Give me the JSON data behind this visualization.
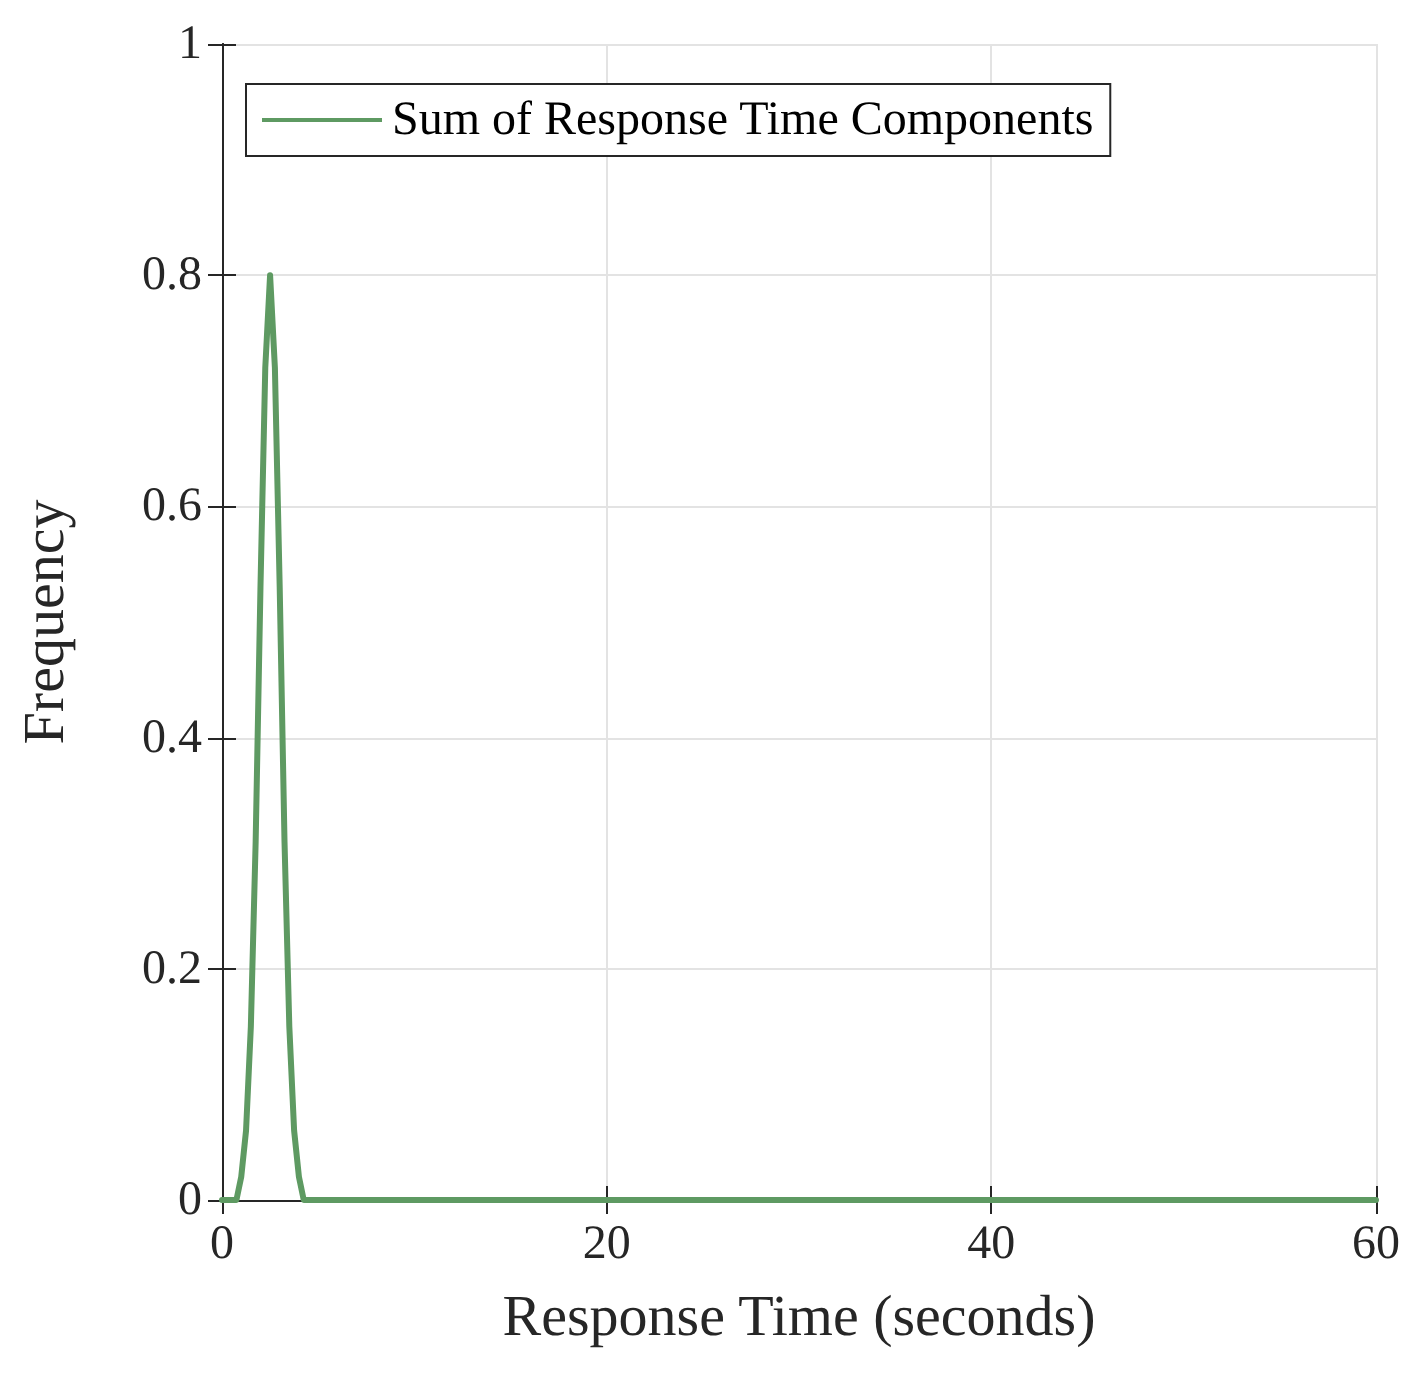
{
  "chart_data": {
    "type": "line",
    "xlabel": "Response Time (seconds)",
    "ylabel": "Frequency",
    "x": [
      0,
      0.5,
      0.75,
      1,
      1.25,
      1.5,
      1.75,
      2,
      2.25,
      2.5,
      2.75,
      3,
      3.25,
      3.5,
      3.75,
      4,
      4.25,
      4.5,
      5,
      60
    ],
    "series": [
      {
        "name": "Sum of Response Time Components",
        "color": "#5e9a62",
        "values": [
          0,
          0,
          0,
          0.02,
          0.06,
          0.15,
          0.31,
          0.53,
          0.72,
          0.8,
          0.72,
          0.53,
          0.31,
          0.15,
          0.06,
          0.02,
          0,
          0,
          0,
          0
        ]
      }
    ],
    "xlim": [
      0,
      60
    ],
    "xticks": [
      0,
      20,
      40,
      60
    ],
    "ylim": [
      0,
      1
    ],
    "yticks": [
      0,
      0.2,
      0.4,
      0.6,
      0.8,
      1
    ],
    "grid": true,
    "legend": "top left",
    "marker": "none",
    "line_style": "solid"
  }
}
